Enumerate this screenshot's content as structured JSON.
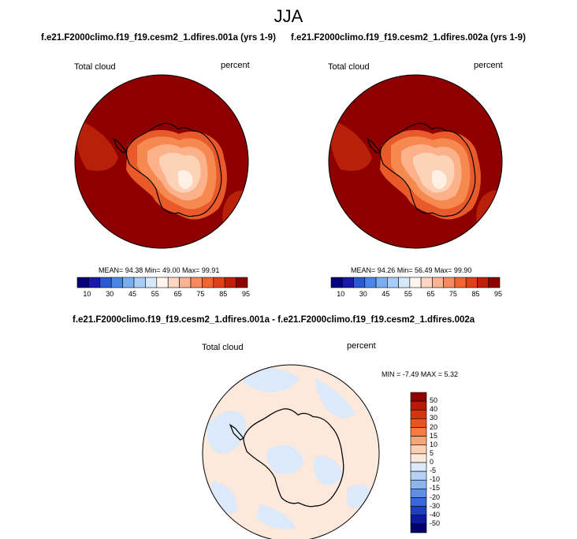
{
  "title": "JJA",
  "panels": [
    {
      "case": "f.e21.F2000climo.f19_f19.cesm2_1.dfires.001a (yrs 1-9)",
      "variable": "Total cloud",
      "units": "percent",
      "stats": {
        "mean": "94.38",
        "min": "49.00",
        "max": "99.91"
      },
      "stats_text": "MEAN=  94.38  Min=  49.00  Max=  99.91"
    },
    {
      "case": "f.e21.F2000climo.f19_f19.cesm2_1.dfires.002a (yrs 1-9)",
      "variable": "Total cloud",
      "units": "percent",
      "stats": {
        "mean": "94.26",
        "min": "56.49",
        "max": "99.90"
      },
      "stats_text": "MEAN=  94.26  Min=  56.49  Max=  99.90"
    }
  ],
  "colorbar_abs": {
    "tick_labels": [
      "10",
      "30",
      "45",
      "55",
      "65",
      "75",
      "85",
      "95"
    ],
    "colors": [
      "#06007a",
      "#1a1aa8",
      "#2a5ad0",
      "#4a86e8",
      "#7aaef2",
      "#a9cdf7",
      "#d6e8fb",
      "#fff7ee",
      "#fdd7c3",
      "#fbb396",
      "#f8895e",
      "#f2652e",
      "#e04018",
      "#c02008",
      "#8e0000"
    ]
  },
  "difference": {
    "title": "f.e21.F2000climo.f19_f19.cesm2_1.dfires.001a - f.e21.F2000climo.f19_f19.cesm2_1.dfires.002a",
    "variable": "Total cloud",
    "units": "percent",
    "min": "-7.49",
    "max": "5.32",
    "stats_text": "MIN =  -7.49  MAX =   5.32",
    "colorbar": {
      "labels": [
        "50",
        "40",
        "30",
        "20",
        "15",
        "10",
        "5",
        "0",
        "-5",
        "-10",
        "-15",
        "-20",
        "-30",
        "-40",
        "-50"
      ],
      "colors": [
        "#8e0000",
        "#b81a05",
        "#d6330f",
        "#ea5421",
        "#f57a44",
        "#f9a57a",
        "#fcd0b4",
        "#fde9dc",
        "#dbe9fa",
        "#b7d1f5",
        "#8db4ee",
        "#5f8fe6",
        "#3a68dc",
        "#1e3fc5",
        "#0a1a9a",
        "#02006a"
      ]
    }
  },
  "colors": {
    "ocean_high_cloud": "#8e0000",
    "diff_positive_small": "#fde9dc",
    "diff_negative_small": "#dbe9fa",
    "coast": "#000000"
  }
}
